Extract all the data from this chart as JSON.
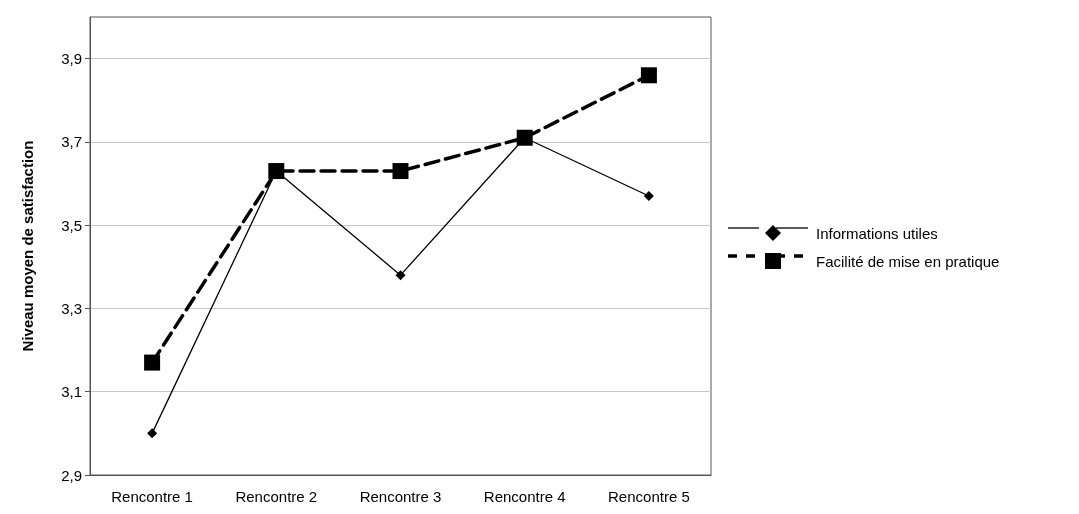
{
  "chart_data": {
    "type": "line",
    "ylabel": "Niveau moyen de satisfaction",
    "categories": [
      "Rencontre 1",
      "Rencontre 2",
      "Rencontre 3",
      "Rencontre 4",
      "Rencontre 5"
    ],
    "series": [
      {
        "name": "Informations utiles",
        "color": "#000000",
        "values": [
          3.0,
          3.63,
          3.38,
          3.71,
          3.57
        ],
        "marker": "diamond",
        "line_style": "solid"
      },
      {
        "name": "Facilité de mise en pratique",
        "color": "#000000",
        "values": [
          3.17,
          3.63,
          3.63,
          3.71,
          3.86
        ],
        "marker": "square",
        "line_style": "dashed"
      }
    ],
    "ylim": [
      2.9,
      4.0
    ],
    "yticks": [
      {
        "value": 2.9,
        "label": "2,9"
      },
      {
        "value": 3.1,
        "label": "3,1"
      },
      {
        "value": 3.3,
        "label": "3,3"
      },
      {
        "value": 3.5,
        "label": "3,5"
      },
      {
        "value": 3.7,
        "label": "3,7"
      },
      {
        "value": 3.9,
        "label": "3,9"
      }
    ],
    "grid": "y",
    "legend": "right"
  }
}
